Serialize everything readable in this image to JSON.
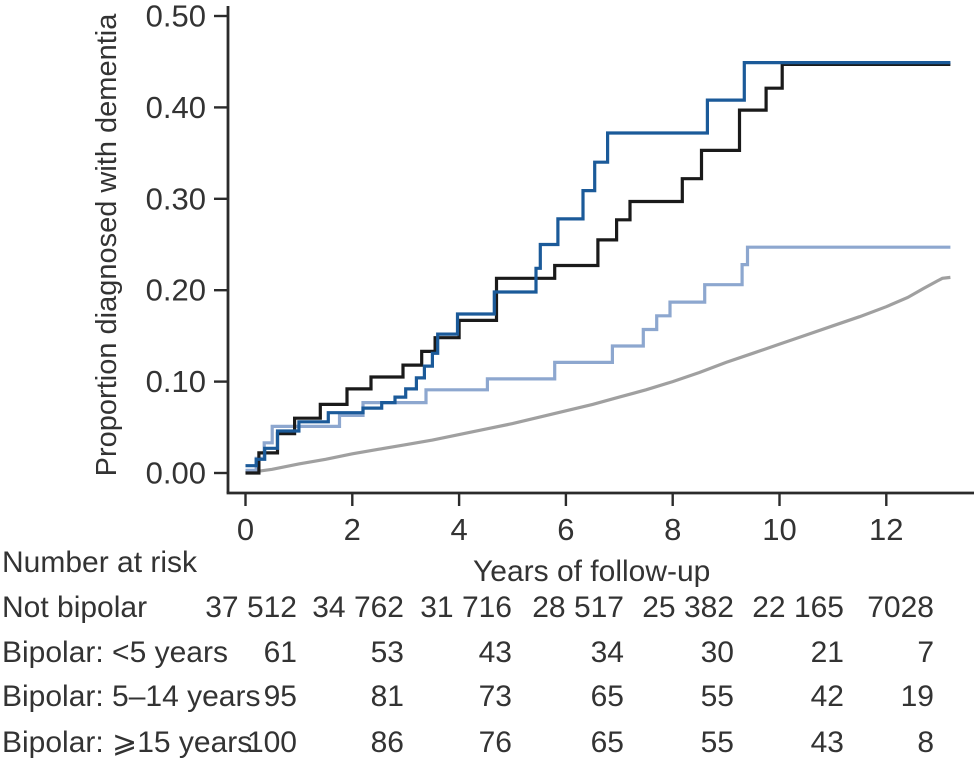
{
  "chart_data": {
    "type": "line",
    "title": "",
    "xlabel": "Years of follow-up",
    "ylabel": "Proportion diagnosed with dementia",
    "xlim": [
      0,
      13.6
    ],
    "ylim": [
      0,
      0.5
    ],
    "grid": false,
    "legend": "none",
    "x_ticks": {
      "labels": [
        "0",
        "2",
        "4",
        "6",
        "8",
        "10",
        "12"
      ],
      "values": [
        0,
        2,
        4,
        6,
        8,
        10,
        12
      ]
    },
    "y_ticks": {
      "labels": [
        "0.00",
        "0.10",
        "0.20",
        "0.30",
        "0.40",
        "0.50"
      ],
      "values": [
        0,
        0.1,
        0.2,
        0.3,
        0.4,
        0.5
      ]
    },
    "axis_color": "#2b2b2b",
    "series": [
      {
        "name": "gray-smooth-curve",
        "style": "smooth",
        "color": "#a0a0a0",
        "points": [
          [
            0,
            0
          ],
          [
            0.5,
            0.004
          ],
          [
            1,
            0.01
          ],
          [
            1.5,
            0.015
          ],
          [
            2,
            0.021
          ],
          [
            2.5,
            0.026
          ],
          [
            3,
            0.031
          ],
          [
            3.5,
            0.036
          ],
          [
            4,
            0.042
          ],
          [
            4.5,
            0.048
          ],
          [
            5,
            0.054
          ],
          [
            5.5,
            0.061
          ],
          [
            6,
            0.068
          ],
          [
            6.5,
            0.075
          ],
          [
            7,
            0.083
          ],
          [
            7.5,
            0.091
          ],
          [
            8,
            0.1
          ],
          [
            8.5,
            0.11
          ],
          [
            9,
            0.121
          ],
          [
            9.5,
            0.131
          ],
          [
            10,
            0.141
          ],
          [
            10.5,
            0.151
          ],
          [
            11,
            0.161
          ],
          [
            11.5,
            0.171
          ],
          [
            12,
            0.182
          ],
          [
            12.4,
            0.192
          ],
          [
            12.7,
            0.202
          ],
          [
            12.95,
            0.21
          ],
          [
            13.05,
            0.213
          ],
          [
            13.2,
            0.214
          ]
        ]
      },
      {
        "name": "light-blue-step-curve",
        "style": "step",
        "color": "#8da7cf",
        "points": [
          [
            0,
            0.003
          ],
          [
            0.2,
            0.016
          ],
          [
            0.35,
            0.033
          ],
          [
            0.5,
            0.051
          ],
          [
            1.76,
            0.063
          ],
          [
            2.2,
            0.077
          ],
          [
            3.38,
            0.091
          ],
          [
            4.53,
            0.103
          ],
          [
            5.79,
            0.121
          ],
          [
            6.87,
            0.139
          ],
          [
            7.45,
            0.157
          ],
          [
            7.7,
            0.172
          ],
          [
            7.95,
            0.187
          ],
          [
            8.6,
            0.206
          ],
          [
            9.3,
            0.228
          ],
          [
            9.4,
            0.247
          ],
          [
            13.2,
            0.247
          ]
        ]
      },
      {
        "name": "black-step-curve",
        "style": "step",
        "color": "#1a1a1a",
        "points": [
          [
            0,
            0
          ],
          [
            0.25,
            0.022
          ],
          [
            0.6,
            0.043
          ],
          [
            0.92,
            0.06
          ],
          [
            1.4,
            0.075
          ],
          [
            1.9,
            0.092
          ],
          [
            2.35,
            0.105
          ],
          [
            2.95,
            0.118
          ],
          [
            3.3,
            0.133
          ],
          [
            3.55,
            0.148
          ],
          [
            4.0,
            0.167
          ],
          [
            4.7,
            0.213
          ],
          [
            5.79,
            0.227
          ],
          [
            6.6,
            0.255
          ],
          [
            6.95,
            0.277
          ],
          [
            7.2,
            0.297
          ],
          [
            8.18,
            0.322
          ],
          [
            8.54,
            0.353
          ],
          [
            9.25,
            0.397
          ],
          [
            9.75,
            0.421
          ],
          [
            10.05,
            0.447
          ],
          [
            13.2,
            0.447
          ]
        ]
      },
      {
        "name": "dark-blue-step-curve",
        "style": "step",
        "color": "#1b5a99",
        "points": [
          [
            0,
            0.008
          ],
          [
            0.2,
            0.015
          ],
          [
            0.36,
            0.027
          ],
          [
            0.6,
            0.046
          ],
          [
            1.0,
            0.056
          ],
          [
            1.55,
            0.066
          ],
          [
            2.2,
            0.071
          ],
          [
            2.55,
            0.077
          ],
          [
            2.8,
            0.083
          ],
          [
            3.0,
            0.092
          ],
          [
            3.2,
            0.104
          ],
          [
            3.35,
            0.117
          ],
          [
            3.5,
            0.131
          ],
          [
            3.6,
            0.152
          ],
          [
            3.97,
            0.174
          ],
          [
            4.66,
            0.198
          ],
          [
            5.44,
            0.224
          ],
          [
            5.52,
            0.25
          ],
          [
            5.85,
            0.278
          ],
          [
            6.32,
            0.309
          ],
          [
            6.54,
            0.34
          ],
          [
            6.78,
            0.372
          ],
          [
            8.65,
            0.408
          ],
          [
            9.34,
            0.449
          ],
          [
            13.2,
            0.449
          ]
        ]
      }
    ]
  },
  "risk_table": {
    "heading": "Number at risk",
    "rows": [
      {
        "label": "Not bipolar",
        "values": [
          "37 512",
          "34 762",
          "31 716",
          "28 517",
          "25 382",
          "22 165",
          "7028"
        ]
      },
      {
        "label": "Bipolar: <5 years",
        "values": [
          "61",
          "53",
          "43",
          "34",
          "30",
          "21",
          "7"
        ]
      },
      {
        "label": "Bipolar: 5–14 years",
        "values": [
          "95",
          "81",
          "73",
          "65",
          "55",
          "42",
          "19"
        ]
      },
      {
        "label": "Bipolar: ⩾15 years",
        "values": [
          "100",
          "86",
          "76",
          "65",
          "55",
          "43",
          "8"
        ]
      }
    ]
  }
}
